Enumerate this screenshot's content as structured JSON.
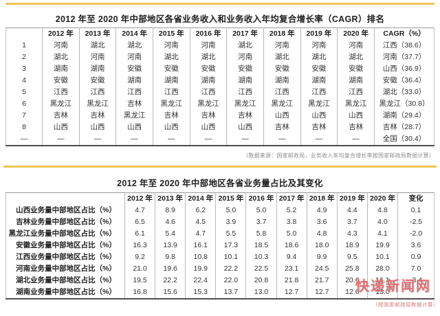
{
  "accent_color": "#eac54f",
  "section1": {
    "title": "2012 年至 2020 年中部地区各省业务收入和业务收入年均复合增长率（CAGR）排名",
    "note": "（数据来源：国家邮政局，业务收入年均复合增长率按国家邮政局数据计算）",
    "table": {
      "headers": [
        "",
        "2012 年",
        "2013 年",
        "2014 年",
        "2015 年",
        "2016 年",
        "2017 年",
        "2018 年",
        "2019 年",
        "2020 年",
        "CAGR（%）"
      ],
      "rows": [
        [
          "1",
          "河南",
          "湖北",
          "湖北",
          "河南",
          "河南",
          "湖北",
          "河南",
          "河南",
          "河南",
          "江西（38.6）"
        ],
        [
          "2",
          "湖北",
          "河南",
          "河南",
          "湖北",
          "湖北",
          "河南",
          "湖北",
          "湖北",
          "湖北",
          "河南（37.7）"
        ],
        [
          "3",
          "湖南",
          "湖南",
          "安徽",
          "安徽",
          "安徽",
          "安徽",
          "安徽",
          "安徽",
          "安徽",
          "山西（36.9）"
        ],
        [
          "4",
          "安徽",
          "安徽",
          "湖南",
          "湖南",
          "湖南",
          "湖南",
          "湖南",
          "湖南",
          "湖南",
          "安徽（36.4）"
        ],
        [
          "5",
          "江西",
          "江西",
          "江西",
          "江西",
          "江西",
          "江西",
          "江西",
          "江西",
          "江西",
          "湖北（33.0）"
        ],
        [
          "6",
          "黑龙江",
          "黑龙江",
          "吉林",
          "黑龙江",
          "黑龙江",
          "黑龙江",
          "黑龙江",
          "黑龙江",
          "黑龙江",
          "黑龙江（30.8）"
        ],
        [
          "7",
          "吉林",
          "吉林",
          "黑龙江",
          "吉林",
          "吉林",
          "吉林",
          "山西",
          "山西",
          "山西",
          "湖南（29.4）"
        ],
        [
          "8",
          "山西",
          "山西",
          "山西",
          "山西",
          "山西",
          "山西",
          "吉林",
          "吉林",
          "吉林",
          "吉林（28.7）"
        ],
        [
          "—",
          "—",
          "—",
          "—",
          "—",
          "—",
          "—",
          "—",
          "—",
          "—",
          "全国（30.4）"
        ]
      ]
    }
  },
  "section2": {
    "title": "2012 年至 2020 年中部地区各省业务量占比及其变化",
    "table": {
      "headers": [
        "",
        "2012 年",
        "2013 年",
        "2014 年",
        "2015 年",
        "2016 年",
        "2017 年",
        "2018 年",
        "2019 年",
        "2020 年",
        "变化"
      ],
      "rows": [
        [
          "山西业务量中部地区占比（%）",
          "4.7",
          "8.9",
          "6.2",
          "5.0",
          "5.0",
          "5.2",
          "4.9",
          "4.4",
          "4.8",
          "0.1"
        ],
        [
          "吉林业务量中部地区占比（%）",
          "6.5",
          "4.6",
          "4.5",
          "3.9",
          "3.7",
          "3.8",
          "3.6",
          "3.7",
          "4.0",
          "-2.5"
        ],
        [
          "黑龙江业务量中部地区占比（%）",
          "6.1",
          "5.4",
          "4.7",
          "5.5",
          "5.8",
          "5.0",
          "4.8",
          "4.3",
          "4.1",
          "-2.0"
        ],
        [
          "安徽业务量中部地区占比（%）",
          "16.3",
          "13.9",
          "16.1",
          "17.3",
          "18.5",
          "18.6",
          "18.0",
          "18.9",
          "19.9",
          "3.6"
        ],
        [
          "江西业务量中部地区占比（%）",
          "9.2",
          "9.8",
          "10.8",
          "10.1",
          "10.3",
          "9.4",
          "9.9",
          "9.5",
          "10.1",
          "0.9"
        ],
        [
          "河南业务量中部地区占比（%）",
          "21.0",
          "19.6",
          "19.9",
          "22.2",
          "22.5",
          "23.1",
          "24.5",
          "25.8",
          "28.0",
          "7.0"
        ],
        [
          "湖北业务量中部地区占比（%）",
          "19.5",
          "22.2",
          "22.4",
          "22.0",
          "20.8",
          "21.8",
          "21.7",
          "20.6",
          "16.1",
          "-3.4"
        ],
        [
          "湖南业务量中部地区占比（%）",
          "16.8",
          "15.6",
          "15.3",
          "13.7",
          "13.0",
          "12.7",
          "12.7",
          "12.6",
          "13.0",
          ""
        ]
      ]
    }
  },
  "watermark": {
    "text": "快递新闻网",
    "caption": "（按国家邮政局数据计算）",
    "color": "#ea6b6b"
  }
}
